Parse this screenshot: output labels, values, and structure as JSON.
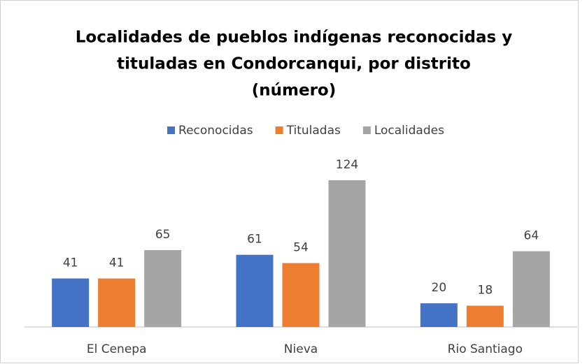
{
  "chart_data": {
    "type": "bar",
    "title": [
      "Localidades de pueblos indígenas reconocidas y",
      "tituladas en Condorcanqui, por distrito",
      "(número)"
    ],
    "categories": [
      "El Cenepa",
      "Nieva",
      "Rio Santiago"
    ],
    "series": [
      {
        "name": "Reconocidas",
        "color": "#4472c4",
        "values": [
          41,
          61,
          20
        ]
      },
      {
        "name": "Tituladas",
        "color": "#ed7d31",
        "values": [
          41,
          54,
          18
        ]
      },
      {
        "name": "Localidades",
        "color": "#a5a5a5",
        "values": [
          65,
          124,
          64
        ]
      }
    ],
    "legend": "top"
  }
}
